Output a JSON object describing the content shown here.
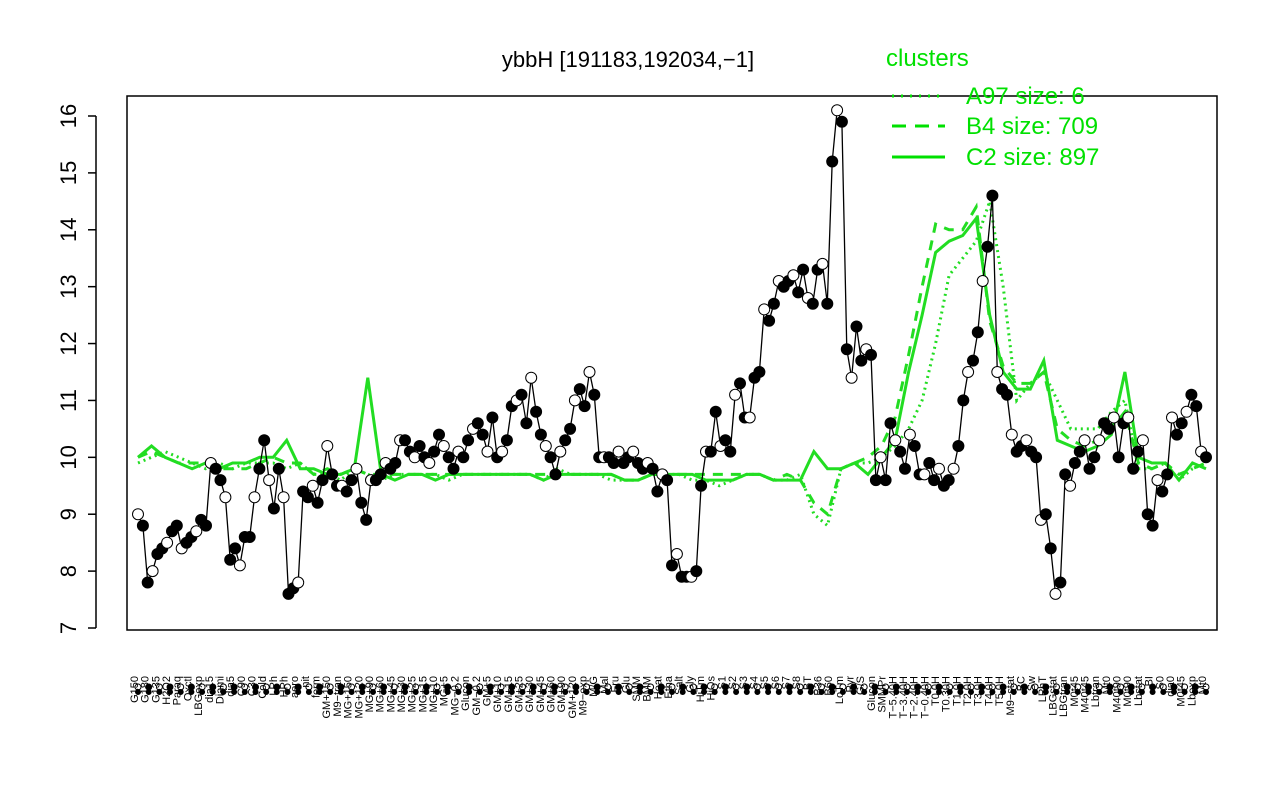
{
  "chart_data": {
    "type": "line",
    "title": "ybbH [191183,192034,−1]",
    "xlabel": "",
    "ylabel": "",
    "ylim": [
      7,
      16
    ],
    "yticks": [
      7,
      8,
      9,
      10,
      11,
      12,
      13,
      14,
      15,
      16
    ],
    "grid": false,
    "legend": {
      "title": "clusters",
      "position": "top-right",
      "color": "#00e000",
      "entries": [
        {
          "label": "A97 size: 6",
          "style": "dotted"
        },
        {
          "label": "B4 size: 709",
          "style": "dashed"
        },
        {
          "label": "C2 size: 897",
          "style": "solid"
        }
      ]
    },
    "x_labels": [
      "G150",
      "G180",
      "G135",
      "H2O2",
      "Paraq",
      "Oxctl",
      "LBGexp",
      "dia15",
      "Diami",
      "dia5",
      "C90",
      "C30",
      "Cold",
      "LPh",
      "HPh",
      "aero",
      "nit",
      "ferm",
      "GM+150",
      "M9−tran",
      "MG+150",
      "MG+120",
      "MG+90",
      "MG+60",
      "MG+45",
      "MG+30",
      "MG+25",
      "MG+15",
      "MG+10",
      "MG+5",
      "MG−0.2",
      "Glucon",
      "GM−0.2",
      "GM+5",
      "GM+10",
      "GM+15",
      "GM+25",
      "GM+30",
      "GM+45",
      "GM+60",
      "GM+90",
      "GM+120",
      "M9−exp",
      "M/G",
      "Mal",
      "Fru",
      "Glu",
      "SMM",
      "BMM",
      "Heat",
      "Etha",
      "Salt",
      "Gly",
      "HiTm",
      "HiOs",
      "S1",
      "S2",
      "S3",
      "S4",
      "S5",
      "S6",
      "S7",
      "S8",
      "BT",
      "B36",
      "B60",
      "LoTm",
      "Pyr",
      "G/S",
      "Glucon",
      "SMMPr",
      "T−5.40H",
      "T−3.40H",
      "T−2.40H",
      "T−0.40H",
      "T0.0H",
      "T0.30H",
      "T1.0H",
      "T2.0H",
      "T3.0H",
      "T4.0H",
      "T5.0H",
      "M9−stat",
      "BC",
      "Sw",
      "LPhT",
      "LBGstat",
      "LBGtran",
      "M0t45",
      "M40t45",
      "Lbtran",
      "Mt0",
      "M40t90",
      "M0t90",
      "Lbstat",
      "BI",
      "S0",
      "dia0",
      "M0t45",
      "Lbexp",
      "Mt0"
    ],
    "x_label_display": [
      "G150",
      "G180",
      "G135",
      "H2O2",
      "Paraq",
      "Oxctl",
      "LBGexp",
      "dia15",
      "Diami",
      "dia5",
      "C90",
      "C30",
      "Cold",
      "LPh",
      "HPh",
      "aero",
      "nit",
      "ferm",
      "GM+150",
      "M9−tran",
      "MG+150",
      "MG+120",
      "BT",
      "B36",
      "B60",
      "LoTm",
      "Pyr",
      "G/S",
      "Glucon",
      "SMMPr",
      "Sw",
      "BC",
      "M9−stat",
      "LPhT",
      "LBGstat",
      "LBGtran",
      "M0t45",
      "M40t45",
      "Lbtran",
      "Mt0",
      "M40t90",
      "M0t90",
      "Lbstat",
      "BI",
      "S0",
      "dia0",
      "Lbexp",
      "Mal",
      "Fru",
      "Glu",
      "SMM",
      "BMM",
      "Heat",
      "Etha",
      "Salt",
      "Gly",
      "HiTm",
      "HiOs",
      "S1",
      "S2",
      "S3",
      "S4",
      "S5",
      "S6",
      "S7",
      "S8",
      "M/G",
      "M9−exp",
      "Glucon"
    ],
    "series": [
      {
        "name": "ybbH",
        "style": "black-line-with-points",
        "values": [
          9.0,
          8.8,
          7.8,
          8.0,
          8.3,
          8.4,
          8.5,
          8.7,
          8.8,
          8.4,
          8.5,
          8.6,
          8.7,
          8.9,
          8.8,
          9.9,
          9.8,
          9.6,
          9.3,
          8.2,
          8.4,
          8.1,
          8.6,
          8.6,
          9.3,
          9.8,
          10.3,
          9.6,
          9.1,
          9.8,
          9.3,
          7.6,
          7.7,
          7.8,
          9.4,
          9.3,
          9.5,
          9.2,
          9.6,
          10.2,
          9.7,
          9.5,
          9.5,
          9.4,
          9.6,
          9.8,
          9.2,
          8.9,
          9.6,
          9.6,
          9.7,
          9.9,
          9.8,
          9.9,
          10.3,
          10.3,
          10.1,
          10.0,
          10.2,
          10.0,
          9.9,
          10.1,
          10.4,
          10.2,
          10.0,
          9.8,
          10.1,
          10.0,
          10.3,
          10.5,
          10.6,
          10.4,
          10.1,
          10.7,
          10.0,
          10.1,
          10.3,
          10.9,
          11.0,
          11.1,
          10.6,
          11.4,
          10.8,
          10.4,
          10.2,
          10.0,
          9.7,
          10.1,
          10.3,
          10.5,
          11.0,
          11.2,
          10.9,
          11.5,
          11.1,
          10.0,
          10.0,
          10.0,
          9.9,
          10.1,
          9.9,
          10.0,
          10.1,
          9.9,
          9.8,
          9.9,
          9.8,
          9.4,
          9.7,
          9.6,
          8.1,
          8.3,
          7.9,
          7.9,
          7.9,
          8.0,
          9.5,
          10.1,
          10.1,
          10.8,
          10.2,
          10.3,
          10.1,
          11.1,
          11.3,
          10.7,
          10.7,
          11.4,
          11.5,
          12.6,
          12.4,
          12.7,
          13.1,
          13.0,
          13.1,
          13.2,
          12.9,
          13.3,
          12.8,
          12.7,
          13.3,
          13.4,
          12.7,
          15.2,
          16.1,
          15.9,
          11.9,
          11.4,
          12.3,
          11.7,
          11.9,
          11.8,
          9.6,
          10.0,
          9.6,
          10.6,
          10.3,
          10.1,
          9.8,
          10.4,
          10.2,
          9.7,
          9.7,
          9.9,
          9.6,
          9.8,
          9.5,
          9.6,
          9.8,
          10.2,
          11.0,
          11.5,
          11.7,
          12.2,
          13.1,
          13.7,
          14.6,
          11.5,
          11.2,
          11.1,
          10.4,
          10.1,
          10.2,
          10.3,
          10.1,
          10.0,
          8.9,
          9.0,
          8.4,
          7.6,
          7.8,
          9.7,
          9.5,
          9.9,
          10.1,
          10.3,
          9.8,
          10.0,
          10.3,
          10.6,
          10.5,
          10.7,
          10.0,
          10.6,
          10.7,
          9.8,
          10.1,
          10.3,
          9.0,
          8.8,
          9.6,
          9.4,
          9.7,
          10.7,
          10.4,
          10.6,
          10.8,
          11.1,
          10.9,
          10.1,
          10.0
        ]
      },
      {
        "name": "A97 size: 6",
        "style": "dotted",
        "values": [
          9.9,
          10.0,
          10.1,
          10.0,
          9.9,
          9.8,
          9.9,
          9.8,
          9.9,
          9.9,
          9.9,
          9.8,
          9.9,
          9.7,
          9.7,
          9.6,
          9.8,
          9.7,
          9.6,
          9.7,
          9.7,
          9.7,
          9.7,
          9.6,
          9.7,
          9.7,
          9.7,
          9.7,
          9.7,
          9.7,
          9.6,
          9.8,
          9.7,
          9.7,
          9.7,
          9.6,
          9.6,
          9.6,
          9.7,
          9.7,
          9.7,
          9.6,
          9.6,
          9.5,
          9.6,
          9.7,
          9.7,
          9.6,
          9.6,
          9.7,
          9.0,
          8.8,
          9.8,
          9.9,
          9.9,
          10.0,
          10.2,
          10.5,
          11.0,
          12.0,
          13.2,
          13.5,
          13.8,
          14.5,
          13.0,
          11.0,
          11.3,
          11.5,
          11.0,
          10.5,
          10.5,
          10.5,
          10.8,
          11.0,
          9.8,
          9.8,
          9.9,
          9.6,
          9.8,
          9.9
        ]
      },
      {
        "name": "B4 size: 709",
        "style": "dashed",
        "values": [
          10.0,
          10.1,
          10.0,
          9.9,
          9.9,
          9.9,
          9.8,
          9.8,
          9.8,
          9.9,
          10.0,
          9.9,
          9.9,
          9.7,
          9.8,
          9.7,
          9.8,
          9.7,
          9.7,
          9.7,
          9.7,
          9.7,
          9.7,
          9.7,
          9.7,
          9.7,
          9.7,
          9.7,
          9.7,
          9.7,
          9.7,
          9.7,
          9.7,
          9.7,
          9.7,
          9.7,
          9.6,
          9.6,
          9.7,
          9.7,
          9.7,
          9.7,
          9.7,
          9.7,
          9.7,
          9.7,
          9.7,
          9.6,
          9.7,
          9.6,
          9.2,
          9.0,
          9.8,
          9.9,
          10.0,
          10.2,
          10.7,
          11.8,
          13.0,
          14.1,
          14.0,
          14.0,
          14.4,
          12.4,
          11.6,
          11.3,
          11.3,
          11.5,
          10.5,
          10.3,
          10.2,
          10.3,
          10.5,
          10.8,
          9.9,
          9.8,
          9.9,
          9.7,
          9.8,
          9.9
        ]
      },
      {
        "name": "C2 size: 897",
        "style": "solid",
        "values": [
          10.0,
          10.2,
          10.0,
          9.9,
          9.8,
          9.9,
          9.8,
          9.9,
          9.9,
          10.0,
          10.0,
          10.3,
          9.8,
          9.8,
          9.7,
          9.7,
          9.8,
          11.4,
          9.7,
          9.6,
          9.7,
          9.7,
          9.6,
          9.7,
          9.7,
          9.7,
          9.7,
          9.7,
          9.7,
          9.7,
          9.6,
          9.7,
          9.7,
          9.7,
          9.7,
          9.7,
          9.6,
          9.6,
          9.7,
          9.7,
          9.7,
          9.7,
          9.6,
          9.6,
          9.6,
          9.7,
          9.7,
          9.6,
          9.6,
          9.6,
          10.1,
          9.8,
          9.8,
          9.9,
          9.7,
          10.0,
          10.3,
          11.5,
          12.5,
          13.6,
          13.8,
          13.9,
          14.2,
          12.5,
          11.5,
          11.2,
          11.2,
          11.7,
          10.3,
          10.2,
          10.1,
          10.2,
          10.4,
          11.5,
          10.0,
          9.9,
          9.9,
          9.6,
          9.9,
          9.8
        ]
      }
    ]
  }
}
